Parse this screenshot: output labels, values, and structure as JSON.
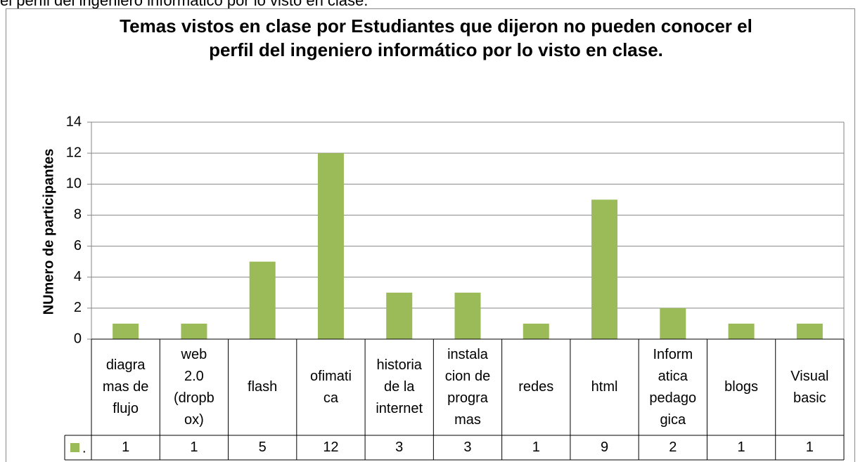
{
  "header_text": "el perfil del ingeniero informático por lo visto en clase.",
  "chart_data": {
    "type": "bar",
    "title": "Temas vistos en clase por Estudiantes  que dijeron no pueden conocer el perfil del ingeniero informático por lo visto en clase.",
    "y_label": "NUmero de participantes",
    "categories": [
      "diagra\nmas de\nflujo",
      "web\n2.0\n(dropb\nox)",
      "flash",
      "ofimati\nca",
      "historia\nde la\ninternet",
      "instala\ncion de\nprogra\nmas",
      "redes",
      "html",
      "Inform\natica\npedago\ngica",
      "blogs",
      "Visual\nbasic"
    ],
    "series": [
      {
        "name": ".",
        "color": "#9bbb59",
        "values": [
          1,
          1,
          5,
          12,
          3,
          3,
          1,
          9,
          2,
          1,
          1
        ]
      }
    ],
    "ylim": [
      0,
      14
    ],
    "yticks": [
      0,
      2,
      4,
      6,
      8,
      10,
      12,
      14
    ],
    "grid": true
  }
}
